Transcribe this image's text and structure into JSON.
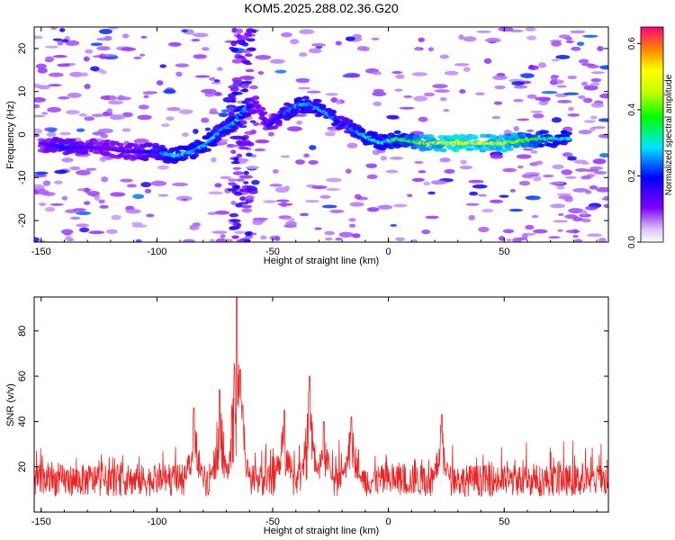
{
  "figure": {
    "title": "KOM5.2025.288.02.36.G20"
  },
  "chart_data": [
    {
      "type": "heatmap",
      "title": "KOM5.2025.288.02.36.G20",
      "xlabel": "Height of straight line (km)",
      "ylabel": "Frequency (Hz)",
      "xlim": [
        -153,
        95
      ],
      "ylim": [
        -25,
        25
      ],
      "xticks": [
        -150,
        -100,
        -50,
        0,
        50
      ],
      "yticks": [
        -20,
        -10,
        0,
        10,
        20
      ],
      "colorbar": {
        "label": "Normalized spectral amplitude",
        "range": [
          0,
          0.65
        ],
        "ticks": [
          "0.0",
          "0.2",
          "0.4",
          "0.6"
        ],
        "colormap": "rainbow"
      },
      "ridge_x": [
        -150,
        -140,
        -125,
        -110,
        -100,
        -92,
        -85,
        -78,
        -72,
        -66,
        -62,
        -57,
        -52,
        -45,
        -38,
        -33,
        -27,
        -22,
        -15,
        -8,
        -3,
        3,
        15,
        30,
        50,
        65,
        78
      ],
      "ridge_y": [
        -2,
        -3,
        -3,
        -4,
        -4,
        -5,
        -4,
        -2,
        1,
        3,
        6,
        7,
        2,
        5,
        7,
        7,
        5,
        3,
        1,
        -1,
        -2,
        -1,
        -2,
        -2,
        -2,
        -1,
        -1
      ],
      "ridge_amplitude": [
        0.12,
        0.2,
        0.12,
        0.15,
        0.22,
        0.32,
        0.28,
        0.3,
        0.28,
        0.3,
        0.28,
        0.1,
        0.15,
        0.22,
        0.3,
        0.28,
        0.3,
        0.22,
        0.25,
        0.35,
        0.32,
        0.35,
        0.45,
        0.55,
        0.5,
        0.38,
        0.3
      ]
    },
    {
      "type": "line",
      "xlabel": "Height of straight line (km)",
      "ylabel": "SNR (v/v)",
      "xlim": [
        -153,
        95
      ],
      "ylim": [
        0,
        95
      ],
      "xticks": [
        -150,
        -100,
        -50,
        0,
        50
      ],
      "yticks": [
        20,
        40,
        60,
        80
      ],
      "series": [
        {
          "name": "SNR",
          "color": "#ee2222",
          "baseline": 14,
          "peaks": [
            [
              -65.5,
              95
            ],
            [
              -64,
              63
            ],
            [
              -73,
              54
            ],
            [
              -34,
              60
            ],
            [
              -45,
              45
            ],
            [
              -84,
              46
            ],
            [
              -16,
              42
            ],
            [
              23,
              43
            ],
            [
              -28,
              40
            ]
          ]
        }
      ]
    }
  ]
}
